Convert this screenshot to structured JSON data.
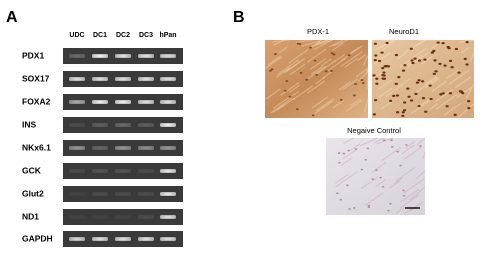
{
  "panel_a": {
    "label": "A",
    "columns": [
      "UDC",
      "DC1",
      "DC2",
      "DC3",
      "hPan"
    ],
    "rows": [
      "PDX1",
      "SOX17",
      "FOXA2",
      "INS",
      "NKx6.1",
      "GCK",
      "Glut2",
      "ND1",
      "GAPDH"
    ]
  },
  "panel_b": {
    "label": "B",
    "images": [
      {
        "title": "PDX-1"
      },
      {
        "title": "NeuroD1"
      },
      {
        "title": "Negaive Control"
      }
    ]
  }
}
